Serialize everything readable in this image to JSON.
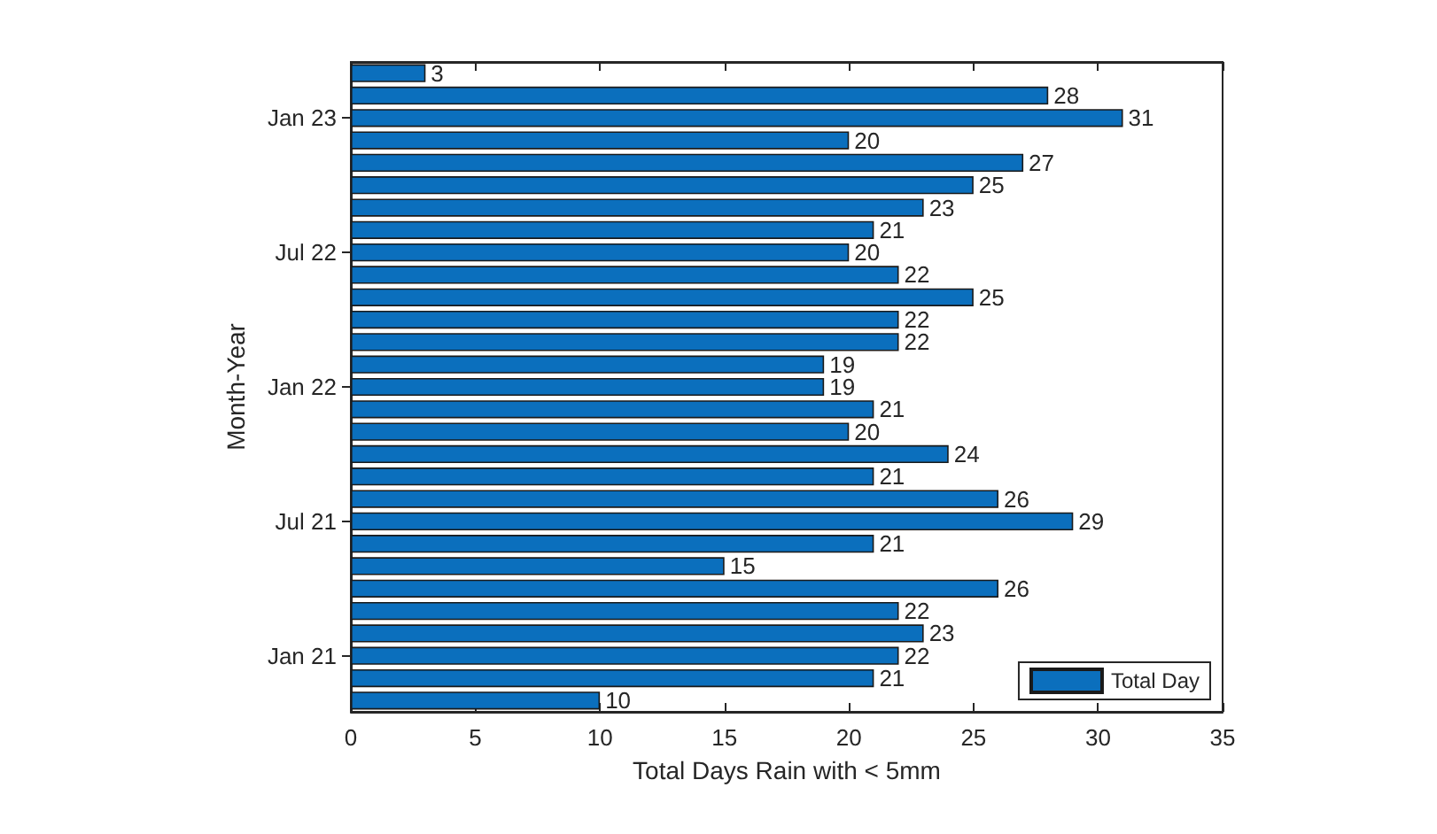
{
  "chart_data": {
    "type": "bar",
    "orientation": "horizontal",
    "xlabel": "Total Days Rain with < 5mm",
    "ylabel": "Month-Year",
    "categories": [
      null,
      null,
      "Jan 23",
      null,
      null,
      null,
      null,
      null,
      "Jul 22",
      null,
      null,
      null,
      null,
      null,
      "Jan 22",
      null,
      null,
      null,
      null,
      null,
      "Jul 21",
      null,
      null,
      null,
      null,
      null,
      "Jan 21",
      null,
      null
    ],
    "series": [
      {
        "name": "Total Day",
        "color": "#0b6fbd",
        "values": [
          3,
          28,
          31,
          20,
          27,
          25,
          23,
          21,
          20,
          22,
          25,
          22,
          22,
          19,
          19,
          21,
          20,
          24,
          21,
          26,
          29,
          21,
          15,
          26,
          22,
          23,
          22,
          21,
          10
        ]
      }
    ],
    "xlim": [
      0,
      35
    ],
    "xticks": [
      0,
      5,
      10,
      15,
      20,
      25,
      30,
      35
    ],
    "data_labels": true,
    "legend": "bottom right",
    "grid": false
  }
}
